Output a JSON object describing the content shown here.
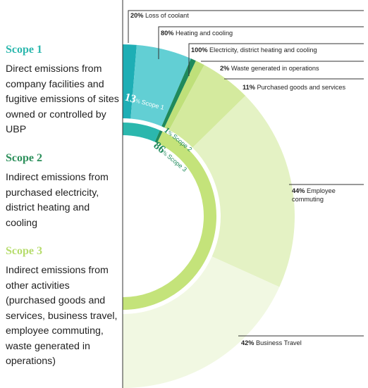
{
  "legend": [
    {
      "title": "Scope 1",
      "color": "#2bb7ad",
      "description": "Direct emissions from company facilities and fugitive emissions of sites owned or controlled by UBP"
    },
    {
      "title": "Scope 2",
      "color": "#2b8f5a",
      "description": "Indirect emissions from purchased electricity, district heating and cooling"
    },
    {
      "title": "Scope 3",
      "color": "#b6dc6c",
      "description": "Indirect emissions from other activities (purchased goods and services, business travel, employee commuting, waste generated in operations)"
    }
  ],
  "chart_data": {
    "type": "pie",
    "subtype": "nested-half-donut",
    "inner_ring": [
      {
        "label": "Scope 1",
        "pct_number": "13",
        "pct_sign": "%",
        "value": 13,
        "color": "#2bb7ad"
      },
      {
        "label": "Scope 2",
        "pct_number": "1",
        "pct_sign": "%",
        "value": 1,
        "color": "#1f8a5c"
      },
      {
        "label": "Scope 3",
        "pct_number": "86",
        "pct_sign": "%",
        "value": 86,
        "color": "#c4e37a"
      }
    ],
    "outer_ring": [
      {
        "scope": "Scope 1",
        "pct": "20%",
        "value": 20,
        "label": "Loss of coolant",
        "color": "#1eaeb5"
      },
      {
        "scope": "Scope 1",
        "pct": "80%",
        "value": 80,
        "label": "Heating and cooling",
        "color": "#62cfd4"
      },
      {
        "scope": "Scope 2",
        "pct": "100%",
        "value": 100,
        "label": "Electricity, district heating and cooling",
        "color": "#1f8a5c"
      },
      {
        "scope": "Scope 3",
        "pct": "2%",
        "value": 2,
        "label": "Waste generated in operations",
        "color": "#bfe07a"
      },
      {
        "scope": "Scope 3",
        "pct": "11%",
        "value": 11,
        "label": "Purchased goods and services",
        "color": "#d4ea9e"
      },
      {
        "scope": "Scope 3",
        "pct": "44%",
        "value": 44,
        "label": "Employee commuting",
        "label_lines": [
          "Employee",
          "commuting"
        ],
        "color": "#e4f2c4"
      },
      {
        "scope": "Scope 3",
        "pct": "42%",
        "value": 42,
        "label": "Business Travel",
        "color": "#f1f8e2"
      }
    ]
  }
}
